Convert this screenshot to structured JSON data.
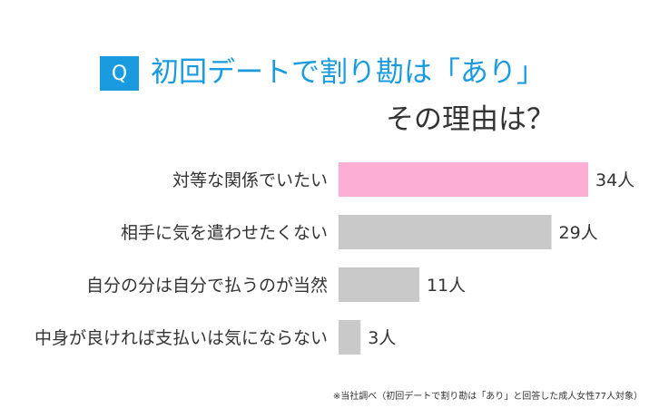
{
  "header": {
    "badge": "Q",
    "title_line1": "初回デートで割り勘は「あり」",
    "title_line2": "その理由は？"
  },
  "colors": {
    "accent": "#1a9be0",
    "highlight_bar": "#fcaed4",
    "bar": "#c9c9c9",
    "text": "#333333"
  },
  "chart_data": {
    "type": "bar",
    "orientation": "horizontal",
    "categories": [
      "対等な関係でいたい",
      "相手に気を遣わせたくない",
      "自分の分は自分で払うのが当然",
      "中身が良ければ支払いは気にならない"
    ],
    "values": [
      34,
      29,
      11,
      3
    ],
    "value_labels": [
      "34人",
      "29人",
      "11人",
      "3人"
    ],
    "xlim": [
      0,
      34
    ],
    "grid": false,
    "legend": "none"
  },
  "footnote": "※当社調べ（初回デートで割り勘は「あり」と回答した成人女性77人対象）"
}
